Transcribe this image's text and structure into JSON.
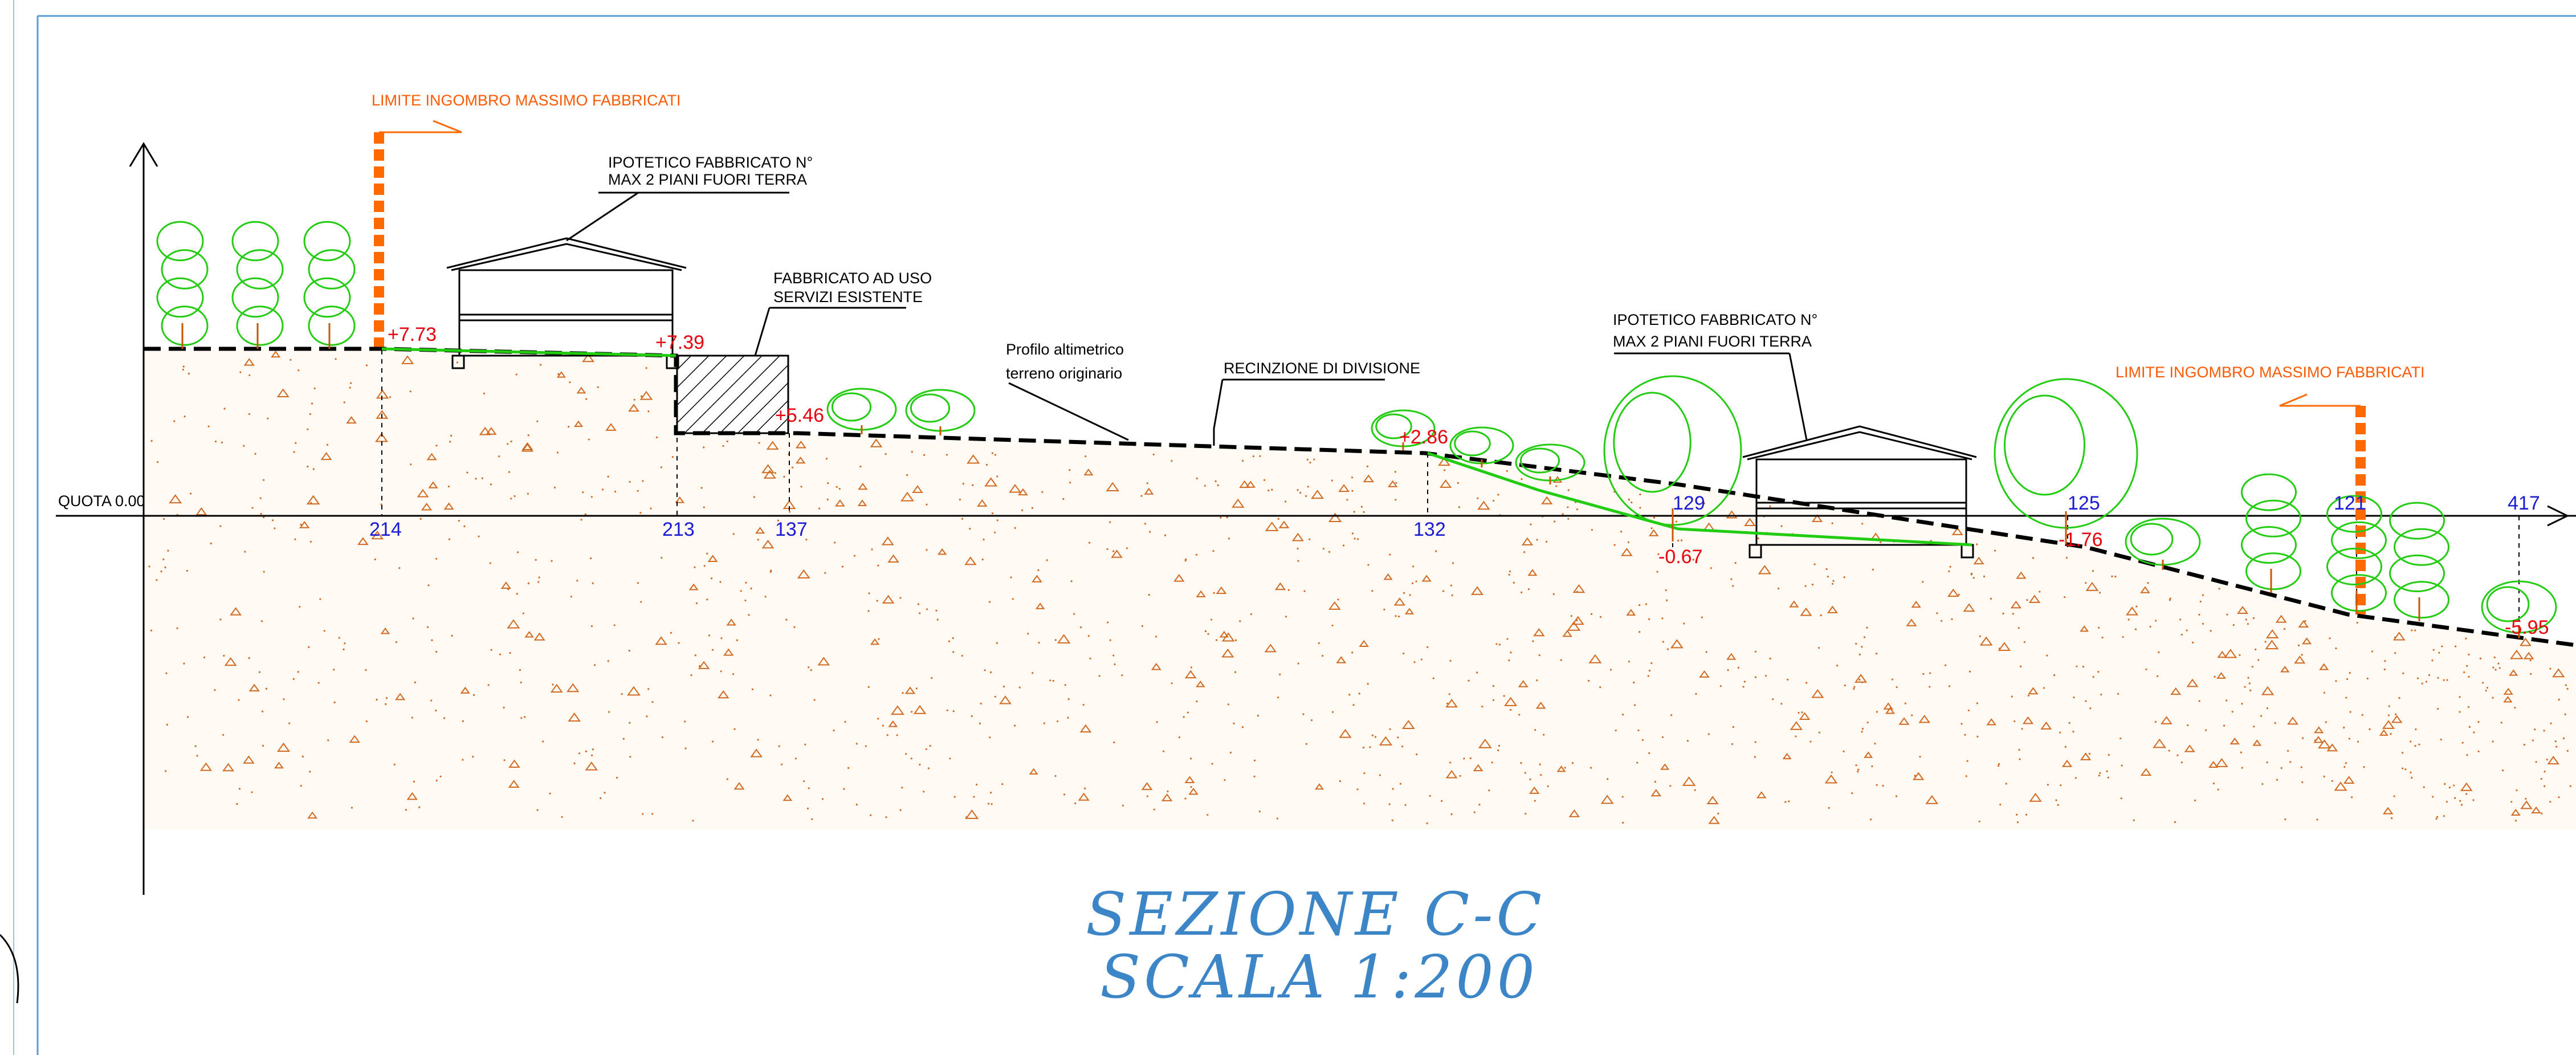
{
  "drawing": {
    "section_title": "SEZIONE C-C",
    "scale_label": "SCALA 1:200",
    "datum_label": "QUOTA 0.00",
    "labels": {
      "limit_left": "LIMITE INGOMBRO MASSIMO FABBRICATI",
      "limit_right": "LIMITE INGOMBRO MASSIMO FABBRICATI",
      "building1_line1": "IPOTETICO FABBRICATO N°",
      "building1_line2": "MAX 2 PIANI FUORI TERRA",
      "existing_line1": "FABBRICATO AD USO",
      "existing_line2": "SERVIZI ESISTENTE",
      "profile_line1": "Profilo altimetrico",
      "profile_line2": "terreno originario",
      "fence": "RECINZIONE DI DIVISIONE",
      "building2_line1": "IPOTETICO FABBRICATO N°",
      "building2_line2": "MAX 2 PIANI FUORI TERRA"
    },
    "elevations": [
      "+7.73",
      "+7.39",
      "+5.46",
      "+2.86",
      "-0.67",
      "-1.76",
      "-5.95"
    ],
    "stations": [
      "214",
      "213",
      "137",
      "132",
      "129",
      "125",
      "121",
      "417"
    ],
    "colors": {
      "ground_fill": "#d2691e",
      "vegetation": "#22cc11",
      "limit_marker": "#ff6a00",
      "elevation_text": "#e8000d",
      "station_text": "#1b1bd6",
      "title_text": "#3c86c8",
      "frame": "#5b9bd5"
    }
  }
}
